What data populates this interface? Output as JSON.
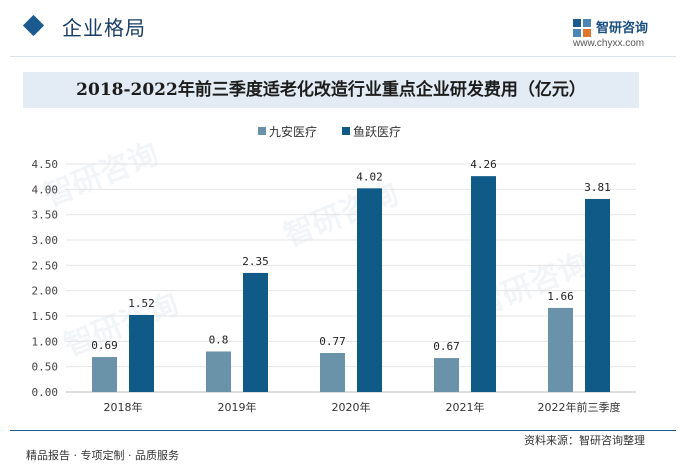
{
  "header": {
    "section_title": "企业格局",
    "logo_name": "智研咨询",
    "logo_url": "www.chyxx.com"
  },
  "footer": {
    "left_text": "精品报告 · 专项定制 · 品质服务",
    "source_text": "资料来源：智研咨询整理"
  },
  "colors": {
    "series_jiuan": "#6a93aa",
    "series_yuyue": "#0f5a86",
    "accent": "#1a5a8e"
  },
  "chart_data": {
    "type": "bar",
    "title": "2018-2022年前三季度适老化改造行业重点企业研发费用（亿元）",
    "xlabel": "",
    "ylabel": "",
    "categories": [
      "2018年",
      "2019年",
      "2020年",
      "2021年",
      "2022年前三季度"
    ],
    "series": [
      {
        "name": "九安医疗",
        "values": [
          0.69,
          0.8,
          0.77,
          0.67,
          1.66
        ]
      },
      {
        "name": "鱼跃医疗",
        "values": [
          1.52,
          2.35,
          4.02,
          4.26,
          3.81
        ]
      }
    ],
    "ylim": [
      0,
      4.5
    ],
    "yticks": [
      "0.00",
      "0.50",
      "1.00",
      "1.50",
      "2.00",
      "2.50",
      "3.00",
      "3.50",
      "4.00",
      "4.50"
    ],
    "value_labels": [
      [
        "0.69",
        "0.8",
        "0.77",
        "0.67",
        "1.66"
      ],
      [
        "1.52",
        "2.35",
        "4.02",
        "4.26",
        "3.81"
      ]
    ],
    "legend_position": "top-center",
    "grid": true
  }
}
